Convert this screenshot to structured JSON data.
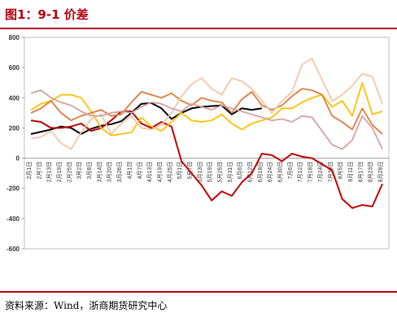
{
  "title": "图1：9-1 价差",
  "source": "资料来源：Wind，浙商期货研究中心",
  "chart_data": {
    "type": "line",
    "ylim": [
      -600,
      800
    ],
    "yticks": [
      -600,
      -400,
      -200,
      0,
      200,
      400,
      600,
      800
    ],
    "categories": [
      "2月1日",
      "2月7日",
      "2月13日",
      "2月19日",
      "2月25日",
      "3月2日",
      "3月8日",
      "3月14日",
      "3月20日",
      "3月26日",
      "4月1日",
      "4月7日",
      "4月13日",
      "4月19日",
      "4月25日",
      "5月1日",
      "5月7日",
      "5月13日",
      "5月19日",
      "5月25日",
      "5月31日",
      "6月6日",
      "6月12日",
      "6月18日",
      "6月24日",
      "6月30日",
      "7月6日",
      "7月12日",
      "7月18日",
      "7月24日",
      "7月30日",
      "8月5日",
      "8月11日",
      "8月17日",
      "8月23日",
      "8月29日"
    ],
    "legend": "none",
    "grid": false,
    "series": [
      {
        "color": "#000000",
        "values": [
          160,
          175,
          190,
          210,
          200,
          160,
          195,
          215,
          225,
          245,
          300,
          360,
          365,
          330,
          260,
          300,
          330,
          340,
          345,
          350,
          290,
          330,
          320,
          330,
          null,
          null,
          null,
          null,
          null,
          null,
          null,
          null,
          null,
          null,
          null,
          null
        ]
      },
      {
        "color": "#c00000",
        "values": [
          250,
          240,
          200,
          200,
          210,
          230,
          180,
          200,
          250,
          310,
          310,
          230,
          200,
          240,
          210,
          -20,
          -100,
          -180,
          -280,
          -220,
          -250,
          -160,
          -100,
          30,
          20,
          -20,
          30,
          10,
          0,
          -40,
          -80,
          -270,
          -330,
          -310,
          -320,
          -170
        ]
      },
      {
        "color": "#ffc000",
        "values": [
          320,
          360,
          380,
          420,
          420,
          400,
          310,
          200,
          150,
          160,
          170,
          270,
          210,
          180,
          240,
          300,
          250,
          240,
          250,
          290,
          230,
          190,
          230,
          250,
          270,
          330,
          330,
          370,
          400,
          420,
          340,
          380,
          280,
          500,
          290,
          310
        ]
      },
      {
        "color": "#e07b39",
        "values": [
          300,
          330,
          380,
          300,
          250,
          280,
          300,
          320,
          280,
          290,
          370,
          440,
          420,
          400,
          430,
          380,
          350,
          400,
          380,
          370,
          300,
          390,
          440,
          350,
          320,
          350,
          410,
          460,
          450,
          420,
          280,
          240,
          190,
          330,
          220,
          160
        ]
      },
      {
        "color": "#f5c6a8",
        "values": [
          130,
          140,
          180,
          100,
          60,
          170,
          260,
          290,
          160,
          230,
          280,
          200,
          190,
          220,
          300,
          410,
          490,
          530,
          460,
          420,
          530,
          510,
          460,
          380,
          300,
          380,
          440,
          620,
          660,
          520,
          380,
          420,
          480,
          560,
          540,
          360
        ]
      },
      {
        "color": "#d4a0a0",
        "values": [
          430,
          450,
          400,
          370,
          350,
          310,
          280,
          280,
          300,
          310,
          300,
          340,
          370,
          360,
          330,
          310,
          360,
          340,
          320,
          350,
          330,
          310,
          290,
          270,
          250,
          260,
          240,
          280,
          270,
          180,
          90,
          60,
          120,
          280,
          200,
          60
        ]
      }
    ]
  }
}
